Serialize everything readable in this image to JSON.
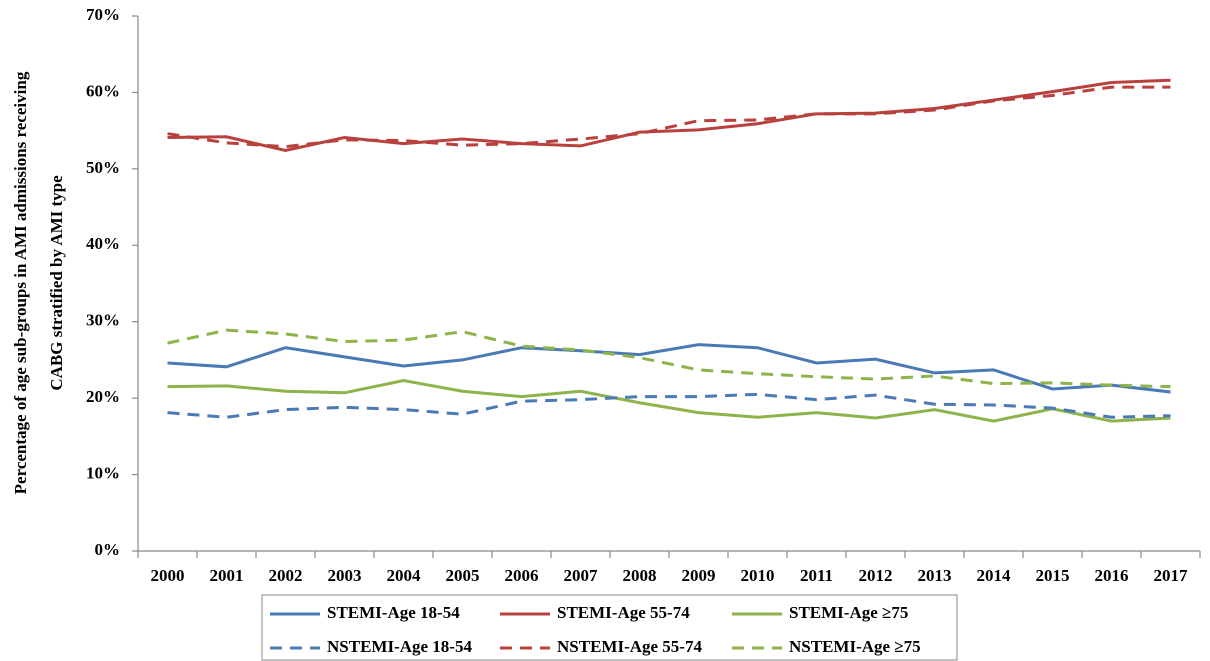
{
  "chart_data": {
    "type": "line",
    "ylabel": [
      "Percentage of age sub-groups in AMI admissions receiving",
      "CABG stratified by AMI type"
    ],
    "categories": [
      "2000",
      "2001",
      "2002",
      "2003",
      "2004",
      "2005",
      "2006",
      "2007",
      "2008",
      "2009",
      "2010",
      "2011",
      "2012",
      "2013",
      "2014",
      "2015",
      "2016",
      "2017"
    ],
    "ylim": [
      0,
      70
    ],
    "yticks": [
      {
        "value": 0,
        "label": "0%"
      },
      {
        "value": 10,
        "label": "10%"
      },
      {
        "value": 20,
        "label": "20%"
      },
      {
        "value": 30,
        "label": "30%"
      },
      {
        "value": 40,
        "label": "40%"
      },
      {
        "value": 50,
        "label": "50%"
      },
      {
        "value": 60,
        "label": "60%"
      },
      {
        "value": 70,
        "label": "70%"
      }
    ],
    "grid": false,
    "legend": "bottom",
    "series": [
      {
        "name": "STEMI-Age 18-54",
        "color": "#4a7ab5",
        "dashed": false,
        "values": [
          24.6,
          24.1,
          26.6,
          25.4,
          24.2,
          25.0,
          26.6,
          26.2,
          25.7,
          27.0,
          26.6,
          24.6,
          25.1,
          23.3,
          23.7,
          21.2,
          21.7,
          20.8
        ]
      },
      {
        "name": "STEMI-Age 55-74",
        "color": "#b8413d",
        "dashed": false,
        "values": [
          54.1,
          54.2,
          52.4,
          54.1,
          53.3,
          53.9,
          53.3,
          53.0,
          54.8,
          55.1,
          55.9,
          57.2,
          57.3,
          57.9,
          59.0,
          60.1,
          61.3,
          61.6
        ]
      },
      {
        "name": "STEMI-Age ≥75",
        "color": "#8db34a",
        "dashed": false,
        "values": [
          21.5,
          21.6,
          20.9,
          20.7,
          22.3,
          20.9,
          20.2,
          20.9,
          19.4,
          18.1,
          17.5,
          18.1,
          17.4,
          18.5,
          17.0,
          18.6,
          17.0,
          17.4
        ]
      },
      {
        "name": "NSTEMI-Age 18-54",
        "color": "#4a7ab5",
        "dashed": true,
        "values": [
          18.1,
          17.5,
          18.5,
          18.8,
          18.5,
          17.9,
          19.6,
          19.8,
          20.2,
          20.2,
          20.5,
          19.8,
          20.4,
          19.2,
          19.1,
          18.7,
          17.5,
          17.7
        ]
      },
      {
        "name": "NSTEMI-Age 55-74",
        "color": "#b8413d",
        "dashed": true,
        "values": [
          54.6,
          53.4,
          52.9,
          53.8,
          53.7,
          53.1,
          53.3,
          53.9,
          54.6,
          56.3,
          56.4,
          57.2,
          57.2,
          57.7,
          58.9,
          59.6,
          60.7,
          60.7
        ]
      },
      {
        "name": "NSTEMI-Age ≥75",
        "color": "#8db34a",
        "dashed": true,
        "values": [
          27.2,
          28.9,
          28.4,
          27.4,
          27.6,
          28.7,
          26.8,
          26.3,
          25.3,
          23.7,
          23.2,
          22.8,
          22.5,
          22.9,
          21.9,
          22.0,
          21.7,
          21.5
        ]
      }
    ]
  }
}
